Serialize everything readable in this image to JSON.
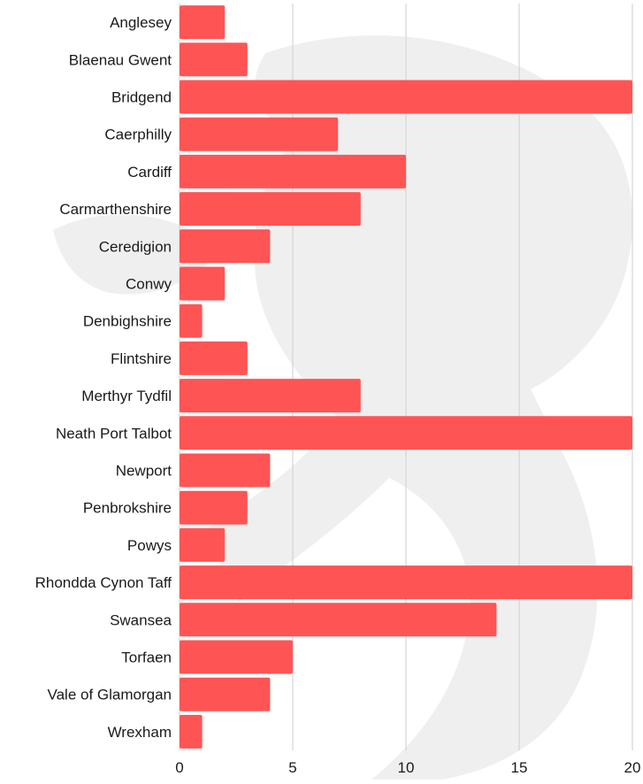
{
  "chart_data": {
    "type": "bar",
    "orientation": "horizontal",
    "title": "",
    "xlabel": "",
    "ylabel": "",
    "categories": [
      "Anglesey",
      "Blaenau Gwent",
      "Bridgend",
      "Caerphilly",
      "Cardiff",
      "Carmarthenshire",
      "Ceredigion",
      "Conwy",
      "Denbighshire",
      "Flintshire",
      "Merthyr Tydfil",
      "Neath Port Talbot",
      "Newport",
      "Penbrokshire",
      "Powys",
      "Rhondda Cynon Taff",
      "Swansea",
      "Torfaen",
      "Vale of Glamorgan",
      "Wrexham"
    ],
    "values": [
      2,
      3,
      20,
      7,
      10,
      8,
      4,
      2,
      1,
      3,
      8,
      20,
      4,
      3,
      2,
      20,
      14,
      5,
      4,
      1
    ],
    "xlim": [
      0,
      20
    ],
    "xticks": [
      0,
      5,
      10,
      15,
      20
    ],
    "bar_color": "#ff5454",
    "grid": true,
    "legend": "none"
  }
}
